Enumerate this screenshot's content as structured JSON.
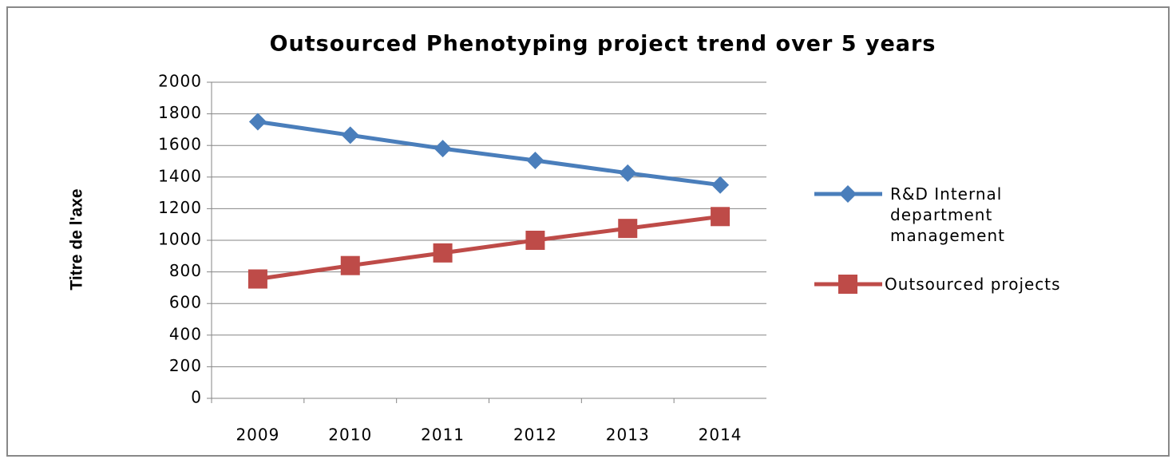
{
  "chart_data": {
    "type": "line",
    "title": "Outsourced Phenotyping project trend over 5 years",
    "y_label": "Titre de l'axe",
    "categories": [
      "2009",
      "2010",
      "2011",
      "2012",
      "2013",
      "2014"
    ],
    "series": [
      {
        "name": "R&D Internal department management",
        "color": "#4a7ebb",
        "marker": "diamond",
        "values": [
          1750,
          1665,
          1580,
          1505,
          1425,
          1350
        ]
      },
      {
        "name": "Outsourced projects",
        "color": "#be4b48",
        "marker": "square",
        "values": [
          755,
          840,
          920,
          1000,
          1075,
          1150
        ]
      }
    ],
    "ylim": [
      0,
      2000
    ],
    "yticks": [
      0,
      200,
      400,
      600,
      800,
      1000,
      1200,
      1400,
      1600,
      1800,
      2000
    ],
    "grid": true,
    "legend": "right"
  }
}
